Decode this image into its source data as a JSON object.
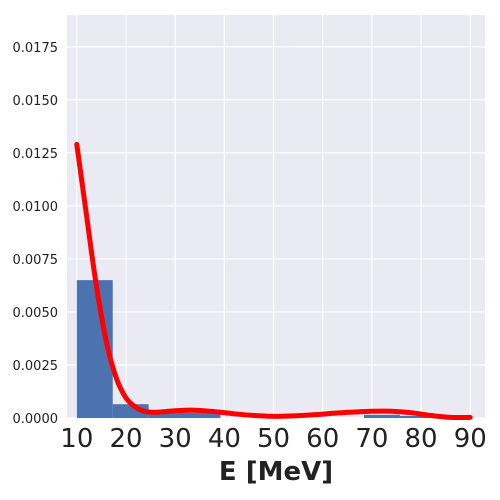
{
  "chart_data": {
    "type": "bar",
    "title": "",
    "xlabel": "E [MeV]",
    "ylabel": "",
    "xlim": [
      8,
      93
    ],
    "ylim": [
      0,
      0.019
    ],
    "grid": true,
    "x_ticks": [
      "10",
      "20",
      "30",
      "40",
      "50",
      "60",
      "70",
      "80",
      "90"
    ],
    "y_ticks": [
      "0.0000",
      "0.0025",
      "0.0050",
      "0.0075",
      "0.0100",
      "0.0125",
      "0.0150",
      "0.0175"
    ],
    "histogram": {
      "color": "#4c72b0",
      "bins": [
        {
          "x0": 10.0,
          "x1": 17.3,
          "value": 0.0065
        },
        {
          "x0": 17.3,
          "x1": 24.6,
          "value": 0.00065
        },
        {
          "x0": 24.6,
          "x1": 31.9,
          "value": 0.0003
        },
        {
          "x0": 31.9,
          "x1": 39.2,
          "value": 0.00025
        },
        {
          "x0": 39.2,
          "x1": 46.5,
          "value": 0.0
        },
        {
          "x0": 46.5,
          "x1": 53.8,
          "value": 0.0
        },
        {
          "x0": 53.8,
          "x1": 61.1,
          "value": 0.0
        },
        {
          "x0": 61.1,
          "x1": 68.4,
          "value": 0.0
        },
        {
          "x0": 68.4,
          "x1": 75.7,
          "value": 0.00015
        },
        {
          "x0": 75.7,
          "x1": 83.0,
          "value": 0.0001
        }
      ]
    },
    "density_curve": {
      "color": "#ff0000",
      "x": [
        10,
        12,
        14,
        16,
        18,
        20,
        22,
        24,
        26,
        28,
        30,
        34,
        38,
        42,
        46,
        50,
        54,
        58,
        62,
        66,
        70,
        74,
        78,
        82,
        86,
        90
      ],
      "y": [
        0.0129,
        0.0095,
        0.0062,
        0.0036,
        0.0019,
        0.00095,
        0.0005,
        0.0003,
        0.00027,
        0.0003,
        0.00034,
        0.00037,
        0.0003,
        0.0002,
        0.00012,
        8e-05,
        0.0001,
        0.00015,
        0.00022,
        0.00028,
        0.00032,
        0.00032,
        0.00025,
        0.00012,
        3e-05,
        3e-05
      ]
    }
  }
}
